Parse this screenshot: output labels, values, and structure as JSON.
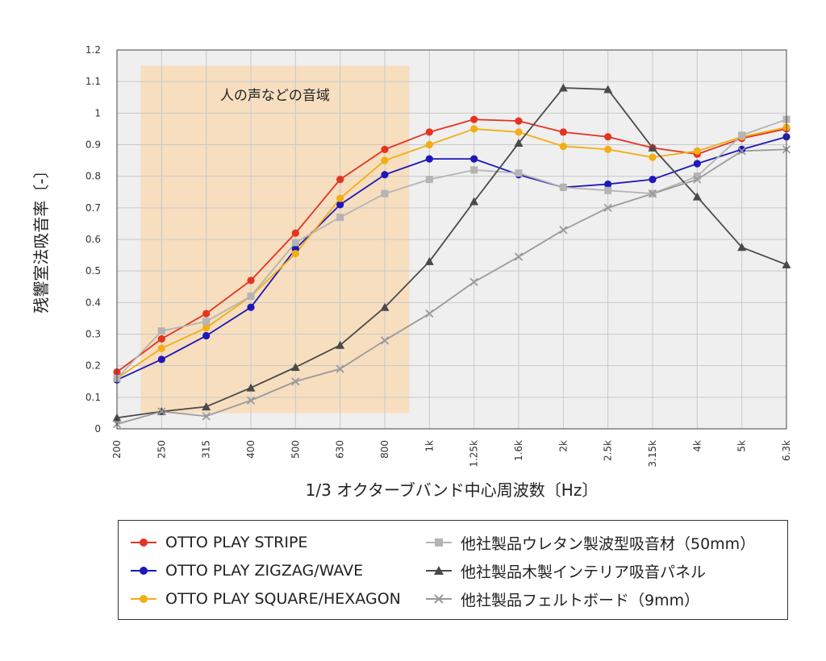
{
  "chart_data": {
    "type": "line",
    "title": "",
    "xlabel": "1/3 オクターブバンド中心周波数〔Hz〕",
    "ylabel": "残響室法吸音率〔-〕",
    "categories": [
      "200",
      "250",
      "315",
      "400",
      "500",
      "630",
      "800",
      "1k",
      "1.25k",
      "1.6k",
      "2k",
      "2.5k",
      "3.15k",
      "4k",
      "5k",
      "6.3k"
    ],
    "ylim": [
      0,
      1.2
    ],
    "yticks": [
      "0",
      "0.1",
      "0.2",
      "0.3",
      "0.4",
      "0.5",
      "0.6",
      "0.7",
      "0.8",
      "0.9",
      "1",
      "1.1",
      "1.2"
    ],
    "grid": true,
    "legend_position": "bottom",
    "annotation": {
      "label": "人の声などの音域",
      "x_start": "250",
      "x_end": "1k"
    },
    "series": [
      {
        "name": "OTTO  PLAY STRIPE",
        "color": "#e53322",
        "marker": "circle",
        "values": [
          0.18,
          0.285,
          0.365,
          0.47,
          0.62,
          0.79,
          0.885,
          0.94,
          0.98,
          0.975,
          0.94,
          0.925,
          0.89,
          0.87,
          0.92,
          0.95
        ]
      },
      {
        "name": "OTTO  PLAY ZIGZAG/WAVE",
        "color": "#1d18b8",
        "marker": "circle",
        "values": [
          0.155,
          0.22,
          0.295,
          0.385,
          0.57,
          0.71,
          0.805,
          0.855,
          0.855,
          0.805,
          0.765,
          0.775,
          0.79,
          0.84,
          0.885,
          0.925
        ]
      },
      {
        "name": "OTTO  PLAY SQUARE/HEXAGON",
        "color": "#f2ae14",
        "marker": "circle",
        "values": [
          0.16,
          0.255,
          0.32,
          0.42,
          0.555,
          0.73,
          0.85,
          0.9,
          0.95,
          0.94,
          0.895,
          0.885,
          0.86,
          0.88,
          0.925,
          0.955
        ]
      },
      {
        "name": "他社製品ウレタン製波型吸音材（50mm）",
        "color": "#b4b4b4",
        "marker": "square",
        "values": [
          0.16,
          0.31,
          0.34,
          0.42,
          0.59,
          0.67,
          0.745,
          0.79,
          0.82,
          0.81,
          0.765,
          0.755,
          0.745,
          0.8,
          0.93,
          0.98
        ]
      },
      {
        "name": "他社製品木製インテリア吸音パネル",
        "color": "#4a4a4a",
        "marker": "triangle",
        "values": [
          0.035,
          0.055,
          0.07,
          0.13,
          0.195,
          0.265,
          0.385,
          0.53,
          0.72,
          0.905,
          1.08,
          1.075,
          0.89,
          0.735,
          0.575,
          0.52
        ]
      },
      {
        "name": "他社製品フェルトボード（9mm）",
        "color": "#9a9a9a",
        "marker": "cross",
        "values": [
          0.015,
          0.055,
          0.04,
          0.09,
          0.15,
          0.19,
          0.28,
          0.365,
          0.465,
          0.545,
          0.63,
          0.7,
          0.745,
          0.79,
          0.88,
          0.885
        ]
      }
    ]
  }
}
